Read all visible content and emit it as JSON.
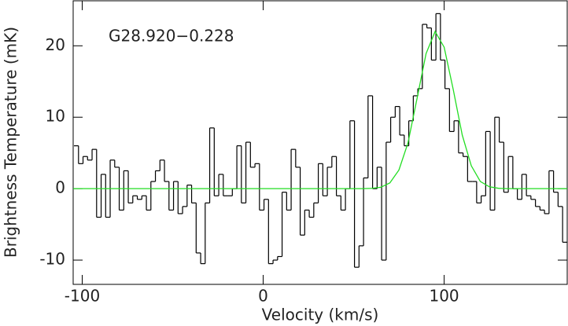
{
  "chart_data": {
    "type": "step",
    "annotation": "G28.920−0.228",
    "x_label": "Velocity (km/s)",
    "y_label": "Brightness Temperature (mK)",
    "xlim": [
      -105,
      168
    ],
    "ylim": [
      -13.4,
      26.3
    ],
    "xticks": [
      -100,
      0,
      100
    ],
    "yticks": [
      -10,
      0,
      10,
      20
    ],
    "series": [
      {
        "type": "step",
        "color": "#000000",
        "x": [
          -103.3,
          -100.8,
          -98.3,
          -95.8,
          -93.3,
          -90.8,
          -88.3,
          -85.8,
          -83.3,
          -80.8,
          -78.3,
          -75.8,
          -73.3,
          -70.8,
          -68.3,
          -65.8,
          -63.3,
          -60.8,
          -58.3,
          -55.8,
          -53.3,
          -50.8,
          -48.3,
          -45.8,
          -43.3,
          -40.8,
          -38.3,
          -35.8,
          -33.3,
          -30.8,
          -28.3,
          -25.8,
          -23.3,
          -20.8,
          -18.3,
          -15.8,
          -13.3,
          -10.8,
          -8.3,
          -5.8,
          -3.3,
          -0.8,
          1.7,
          4.2,
          6.7,
          9.2,
          11.7,
          14.2,
          16.7,
          19.2,
          21.7,
          24.2,
          26.7,
          29.2,
          31.7,
          34.2,
          36.7,
          39.2,
          41.7,
          44.2,
          46.7,
          49.2,
          51.7,
          54.2,
          56.7,
          59.2,
          61.7,
          64.2,
          66.7,
          69.2,
          71.7,
          74.2,
          76.7,
          79.2,
          81.7,
          84.2,
          86.7,
          89.2,
          91.7,
          94.2,
          96.7,
          99.2,
          101.7,
          104.2,
          106.7,
          109.2,
          111.7,
          114.2,
          116.7,
          119.2,
          121.7,
          124.2,
          126.7,
          129.2,
          131.7,
          134.2,
          136.7,
          139.2,
          141.7,
          144.2,
          146.7,
          149.2,
          151.7,
          154.2,
          156.7,
          159.2,
          161.7,
          164.2,
          166.7
        ],
        "values": [
          6,
          3.5,
          4.5,
          4,
          5.5,
          -4,
          2,
          -4,
          4,
          3,
          -3,
          2.5,
          -2,
          -1,
          -1.5,
          -1,
          -3,
          1,
          2.5,
          4,
          1,
          -3,
          1,
          -3.5,
          -2.5,
          0.5,
          -2,
          -9,
          -10.5,
          -2,
          8.5,
          -1,
          2,
          -1,
          -1,
          0,
          6,
          -2,
          6.5,
          3,
          3.5,
          -3,
          -1.5,
          -10.5,
          -10,
          -9.5,
          -0.5,
          -3,
          5.5,
          3,
          -6.5,
          -3,
          -4,
          -2,
          3.5,
          -1,
          3,
          4.5,
          -1,
          -3,
          0,
          9.5,
          -11,
          -8,
          1.5,
          13,
          0,
          3,
          -10,
          6.5,
          10,
          11.5,
          7.5,
          6,
          9.5,
          13,
          14,
          23,
          22.5,
          18,
          24.5,
          18,
          14,
          8,
          9.5,
          5,
          4.5,
          1,
          1,
          -2,
          -1,
          8,
          -3,
          10,
          6.5,
          -0.5,
          4.5,
          0,
          -1.5,
          2,
          -1,
          -1.5,
          -2.5,
          -3,
          -3.5,
          2.5,
          -0.5,
          -2.5,
          -7.5
        ]
      },
      {
        "type": "line",
        "color": "#22dd22",
        "x": [
          -105,
          50,
          55,
          60,
          65,
          70,
          75,
          80,
          85,
          90,
          95,
          100,
          105,
          110,
          115,
          120,
          125,
          130,
          135,
          168
        ],
        "values": [
          0,
          0,
          0,
          0.04,
          0.19,
          0.8,
          2.6,
          6.4,
          12.6,
          18.9,
          22,
          19.8,
          13.9,
          7.5,
          3.2,
          1,
          0.26,
          0.05,
          0,
          0
        ]
      }
    ]
  }
}
